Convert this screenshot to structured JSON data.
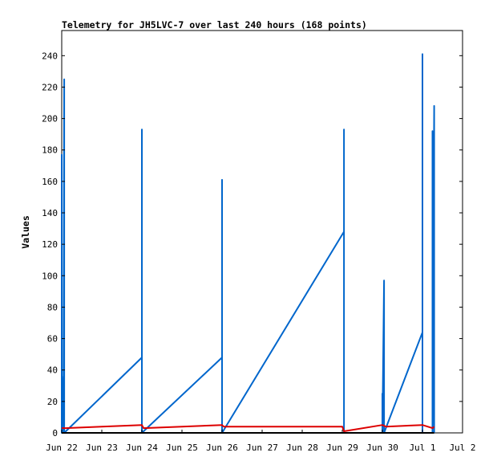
{
  "chart_data": {
    "type": "line",
    "title": "Telemetry for JH5LVC-7 over last 240 hours (168 points)",
    "xlabel": "",
    "ylabel": "Values",
    "xlim": [
      "2024-06-22T00:00",
      "2024-07-02T00:00"
    ],
    "ylim": [
      0,
      256
    ],
    "x_ticks": [
      {
        "t": "2024-06-22T00:00",
        "label": "Jun 22"
      },
      {
        "t": "2024-06-23T00:00",
        "label": "Jun 23"
      },
      {
        "t": "2024-06-24T00:00",
        "label": "Jun 24"
      },
      {
        "t": "2024-06-25T00:00",
        "label": "Jun 25"
      },
      {
        "t": "2024-06-26T00:00",
        "label": "Jun 26"
      },
      {
        "t": "2024-06-27T00:00",
        "label": "Jun 27"
      },
      {
        "t": "2024-06-28T00:00",
        "label": "Jun 28"
      },
      {
        "t": "2024-06-29T00:00",
        "label": "Jun 29"
      },
      {
        "t": "2024-06-30T00:00",
        "label": "Jun 30"
      },
      {
        "t": "2024-07-01T00:00",
        "label": "Jul 1"
      },
      {
        "t": "2024-07-02T00:00",
        "label": "Jul 2"
      }
    ],
    "y_ticks": [
      0,
      20,
      40,
      60,
      80,
      100,
      120,
      140,
      160,
      180,
      200,
      220,
      240
    ],
    "grid": false,
    "legend": "none",
    "series": [
      {
        "color": "#0066cc",
        "points": [
          [
            "2024-06-22T00:00",
            0
          ],
          [
            "2024-06-22T00:00",
            177
          ],
          [
            "2024-06-22T00:00",
            0
          ],
          [
            "2024-06-22T01:00",
            36
          ],
          [
            "2024-06-22T01:00",
            0
          ],
          [
            "2024-06-22T01:30",
            225
          ],
          [
            "2024-06-22T01:30",
            0
          ],
          [
            "2024-06-24T00:00",
            48
          ],
          [
            "2024-06-24T00:00",
            193
          ],
          [
            "2024-06-24T00:00",
            0
          ],
          [
            "2024-06-26T00:00",
            48
          ],
          [
            "2024-06-26T00:00",
            161
          ],
          [
            "2024-06-26T00:00",
            0
          ],
          [
            "2024-06-29T01:00",
            128
          ],
          [
            "2024-06-29T01:00",
            193
          ],
          [
            "2024-06-29T01:00",
            0
          ],
          [
            "2024-06-30T00:00",
            0
          ],
          [
            "2024-06-30T00:00",
            25
          ],
          [
            "2024-06-30T00:00",
            0
          ],
          [
            "2024-06-30T01:00",
            97
          ],
          [
            "2024-06-30T01:00",
            0
          ],
          [
            "2024-07-01T00:00",
            64
          ],
          [
            "2024-07-01T00:00",
            241
          ],
          [
            "2024-07-01T00:00",
            0
          ],
          [
            "2024-07-01T06:00",
            0
          ],
          [
            "2024-07-01T06:00",
            192
          ],
          [
            "2024-07-01T06:00",
            0
          ],
          [
            "2024-07-01T07:00",
            208
          ],
          [
            "2024-07-01T07:00",
            0
          ]
        ]
      },
      {
        "color": "#dd0000",
        "points": [
          [
            "2024-06-22T00:00",
            3
          ],
          [
            "2024-06-22T02:00",
            3
          ],
          [
            "2024-06-23T00:00",
            4
          ],
          [
            "2024-06-24T00:00",
            5
          ],
          [
            "2024-06-24T01:00",
            3
          ],
          [
            "2024-06-25T00:00",
            4
          ],
          [
            "2024-06-26T00:00",
            5
          ],
          [
            "2024-06-26T01:00",
            4
          ],
          [
            "2024-06-27T00:00",
            4
          ],
          [
            "2024-06-28T00:00",
            4
          ],
          [
            "2024-06-29T00:00",
            4
          ],
          [
            "2024-06-29T01:00",
            1
          ],
          [
            "2024-06-30T00:00",
            5
          ],
          [
            "2024-06-30T02:00",
            4
          ],
          [
            "2024-07-01T00:00",
            5
          ],
          [
            "2024-07-01T06:00",
            3
          ],
          [
            "2024-07-01T07:00",
            4
          ]
        ]
      },
      {
        "color": "#000000",
        "points": [
          [
            "2024-06-22T00:00",
            0
          ],
          [
            "2024-07-01T07:00",
            0
          ]
        ]
      }
    ]
  }
}
